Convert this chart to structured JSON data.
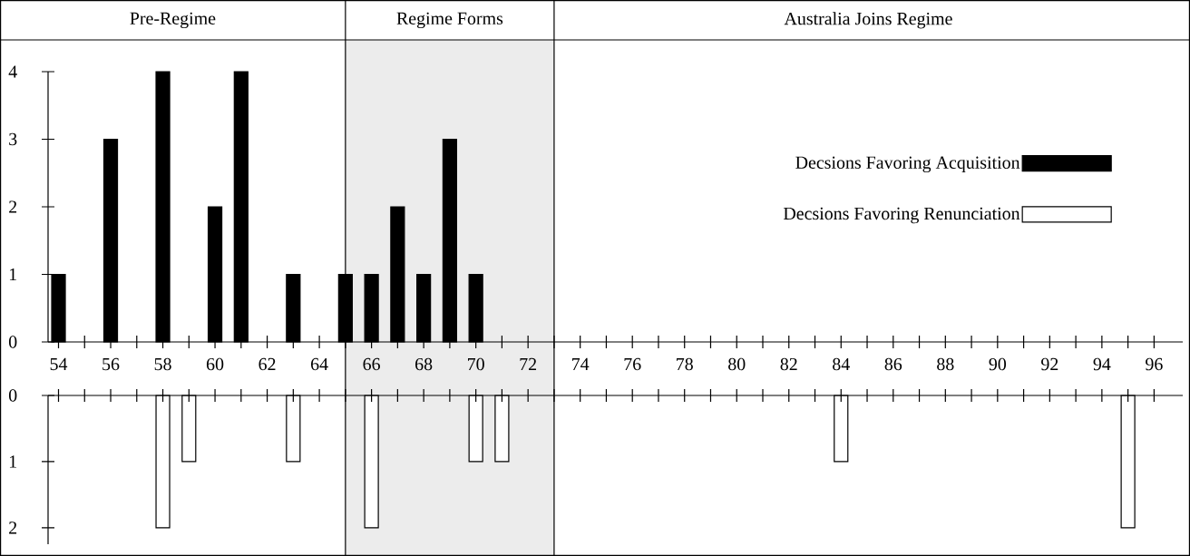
{
  "chart_data": [
    {
      "type": "bar",
      "x": [
        54,
        56,
        58,
        60,
        61,
        63,
        65,
        66,
        67,
        68,
        69,
        70
      ],
      "series": [
        {
          "name": "Decsions Favoring Acquisition",
          "color": "#000000",
          "values": [
            1,
            3,
            4,
            2,
            4,
            1,
            1,
            1,
            2,
            1,
            3,
            1
          ]
        }
      ],
      "xlim": [
        53.6,
        97.1
      ],
      "xticks": [
        54,
        {
          "value": 55,
          "label": null
        },
        56,
        {
          "value": 57,
          "label": null
        },
        58,
        {
          "value": 59,
          "label": null
        },
        60,
        {
          "value": 61,
          "label": null
        },
        62,
        {
          "value": 63,
          "label": null
        },
        64,
        {
          "value": 65,
          "label": null
        },
        66,
        {
          "value": 67,
          "label": null
        },
        68,
        {
          "value": 69,
          "label": null
        },
        70,
        {
          "value": 71,
          "label": null
        },
        72,
        {
          "value": 73,
          "label": null
        },
        74,
        {
          "value": 75,
          "label": null
        },
        76,
        {
          "value": 77,
          "label": null
        },
        78,
        {
          "value": 79,
          "label": null
        },
        80,
        {
          "value": 81,
          "label": null
        },
        82,
        {
          "value": 83,
          "label": null
        },
        84,
        {
          "value": 85,
          "label": null
        },
        86,
        {
          "value": 87,
          "label": null
        },
        88,
        {
          "value": 89,
          "label": null
        },
        90,
        {
          "value": 91,
          "label": null
        },
        92,
        {
          "value": 93,
          "label": null
        },
        94,
        {
          "value": 95,
          "label": null
        },
        96
      ],
      "ylim": [
        0,
        4
      ],
      "yticks": [
        0,
        1,
        2,
        3,
        4
      ],
      "legend": "top right",
      "annotations": [
        "Pre-Regime",
        "Australia Joins Regime"
      ],
      "bands": [
        {
          "axis": "x",
          "from": 65,
          "to": 73,
          "label": "Regime Forms",
          "color": "#ececec"
        }
      ]
    },
    {
      "type": "bar",
      "x": [
        58,
        59,
        63,
        66,
        70,
        71,
        84,
        95
      ],
      "series": [
        {
          "name": "Decsions Favoring Renunciation",
          "color": "#ffffff",
          "values": [
            2,
            1,
            1,
            2,
            1,
            1,
            1,
            2
          ]
        }
      ],
      "xlim": [
        53.6,
        97.1
      ],
      "xticks": [
        54,
        {
          "value": 55,
          "label": null
        },
        56,
        {
          "value": 57,
          "label": null
        },
        58,
        {
          "value": 59,
          "label": null
        },
        60,
        {
          "value": 61,
          "label": null
        },
        62,
        {
          "value": 63,
          "label": null
        },
        64,
        {
          "value": 65,
          "label": null
        },
        66,
        {
          "value": 67,
          "label": null
        },
        68,
        {
          "value": 69,
          "label": null
        },
        70,
        {
          "value": 71,
          "label": null
        },
        72,
        {
          "value": 73,
          "label": null
        },
        74,
        {
          "value": 75,
          "label": null
        },
        76,
        {
          "value": 77,
          "label": null
        },
        78,
        {
          "value": 79,
          "label": null
        },
        80,
        {
          "value": 81,
          "label": null
        },
        82,
        {
          "value": 83,
          "label": null
        },
        84,
        {
          "value": 85,
          "label": null
        },
        86,
        {
          "value": 87,
          "label": null
        },
        88,
        {
          "value": 89,
          "label": null
        },
        90,
        {
          "value": 91,
          "label": null
        },
        92,
        {
          "value": 93,
          "label": null
        },
        94,
        {
          "value": 95,
          "label": null
        },
        96
      ],
      "ylim": [
        2.25,
        0
      ],
      "yticks": [
        0,
        1,
        2
      ],
      "tick_labels": "y",
      "legend": "top",
      "bands": [
        {
          "axis": "x",
          "from": 65,
          "to": 73,
          "color": "#ececec"
        }
      ]
    }
  ]
}
